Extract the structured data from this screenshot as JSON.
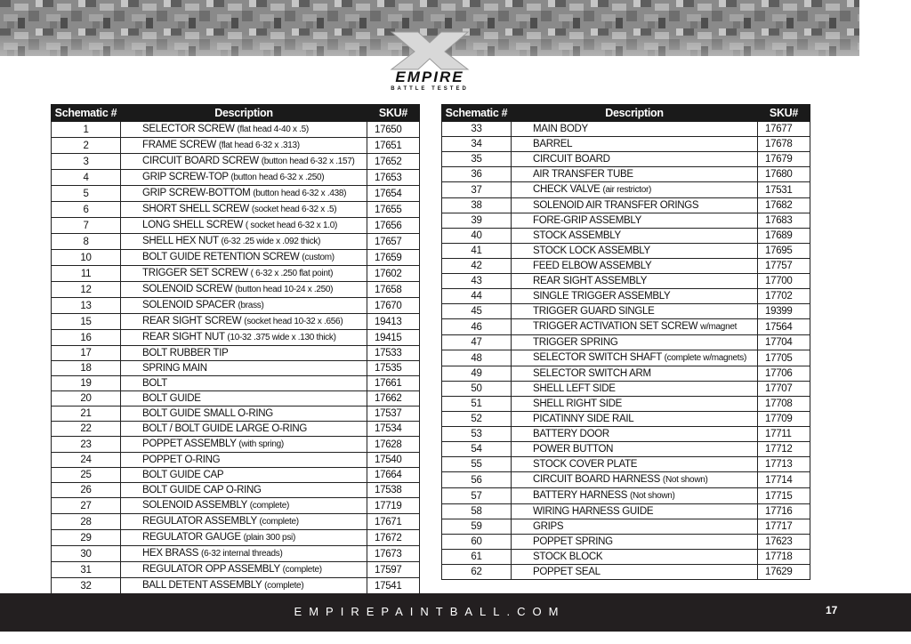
{
  "logo": {
    "brand": "EMPIRE",
    "tagline": "BATTLE TESTED"
  },
  "tables": [
    {
      "header": [
        "Schematic #",
        "Description",
        "SKU#"
      ],
      "rows": [
        {
          "no": "1",
          "desc": "SELECTOR SCREW",
          "note": "(flat head 4-40 x .5)",
          "sku": "17650"
        },
        {
          "no": "2",
          "desc": "FRAME SCREW",
          "note": "(flat head 6-32 x .313)",
          "sku": "17651"
        },
        {
          "no": "3",
          "desc": "CIRCUIT BOARD SCREW",
          "note": "(button head 6-32 x .157)",
          "sku": "17652"
        },
        {
          "no": "4",
          "desc": "GRIP SCREW-TOP",
          "note": "(button head 6-32 x .250)",
          "sku": "17653"
        },
        {
          "no": "5",
          "desc": "GRIP SCREW-BOTTOM",
          "note": "(button head 6-32 x .438)",
          "sku": "17654"
        },
        {
          "no": "6",
          "desc": "SHORT SHELL SCREW",
          "note": "(socket head 6-32 x .5)",
          "sku": "17655"
        },
        {
          "no": "7",
          "desc": "LONG SHELL SCREW",
          "note": "( socket head 6-32 x 1.0)",
          "sku": "17656"
        },
        {
          "no": "8",
          "desc": "SHELL HEX NUT",
          "note": "(6-32 .25 wide x .092 thick)",
          "sku": "17657"
        },
        {
          "no": "10",
          "desc": "BOLT GUIDE RETENTION SCREW",
          "note": "(custom)",
          "sku": "17659"
        },
        {
          "no": "11",
          "desc": "TRIGGER SET SCREW",
          "note": "( 6-32 x .250 flat point)",
          "sku": "17602"
        },
        {
          "no": "12",
          "desc": "SOLENOID SCREW",
          "note": "(button head 10-24 x .250)",
          "sku": "17658"
        },
        {
          "no": "13",
          "desc": "SOLENOID SPACER",
          "note": "(brass)",
          "sku": "17670"
        },
        {
          "no": "15",
          "desc": "REAR SIGHT SCREW",
          "note": "(socket head 10-32 x .656)",
          "sku": "19413"
        },
        {
          "no": "16",
          "desc": "REAR SIGHT NUT",
          "note": "(10-32 .375 wide x .130 thick)",
          "sku": "19415"
        },
        {
          "no": "17",
          "desc": "BOLT RUBBER TIP",
          "sku": "17533"
        },
        {
          "no": "18",
          "desc": "SPRING MAIN",
          "sku": "17535"
        },
        {
          "no": "19",
          "desc": "BOLT",
          "sku": "17661"
        },
        {
          "no": "20",
          "desc": "BOLT GUIDE",
          "sku": "17662"
        },
        {
          "no": "21",
          "desc": "BOLT GUIDE SMALL O-RING",
          "sku": "17537"
        },
        {
          "no": "22",
          "desc": "BOLT / BOLT GUIDE LARGE O-RING",
          "sku": "17534"
        },
        {
          "no": "23",
          "desc": "POPPET ASSEMBLY",
          "note": "(with spring)",
          "sku": "17628"
        },
        {
          "no": "24",
          "desc": "POPPET O-RING",
          "sku": "17540"
        },
        {
          "no": "25",
          "desc": "BOLT GUIDE CAP",
          "sku": "17664"
        },
        {
          "no": "26",
          "desc": "BOLT GUIDE CAP O-RING",
          "sku": "17538"
        },
        {
          "no": "27",
          "desc": "SOLENOID ASSEMBLY",
          "note": "(complete)",
          "sku": "17719"
        },
        {
          "no": "28",
          "desc": "REGULATOR ASSEMBLY",
          "note": "(complete)",
          "sku": "17671"
        },
        {
          "no": "29",
          "desc": "REGULATOR GAUGE",
          "note": "(plain 300 psi)",
          "sku": "17672"
        },
        {
          "no": "30",
          "desc": "HEX BRASS",
          "note": "(6-32 internal threads)",
          "sku": "17673"
        },
        {
          "no": "31",
          "desc": "REGULATOR OPP ASSEMBLY",
          "note": "(complete)",
          "sku": "17597"
        },
        {
          "no": "32",
          "desc": "BALL DETENT ASSEMBLY",
          "note": "(complete)",
          "sku": "17541"
        }
      ]
    },
    {
      "header": [
        "Schematic #",
        "Description",
        "SKU#"
      ],
      "rows": [
        {
          "no": "33",
          "desc": "MAIN BODY",
          "sku": "17677"
        },
        {
          "no": "34",
          "desc": "BARREL",
          "sku": "17678"
        },
        {
          "no": "35",
          "desc": "CIRCUIT BOARD",
          "sku": "17679"
        },
        {
          "no": "36",
          "desc": "AIR TRANSFER TUBE",
          "sku": "17680"
        },
        {
          "no": "37",
          "desc": "CHECK VALVE",
          "note": "(air restrictor)",
          "sku": "17531"
        },
        {
          "no": "38",
          "desc": "SOLENOID AIR TRANSFER ORINGS",
          "sku": "17682"
        },
        {
          "no": "39",
          "desc": "FORE-GRIP ASSEMBLY",
          "sku": "17683"
        },
        {
          "no": "40",
          "desc": "STOCK ASSEMBLY",
          "sku": "17689"
        },
        {
          "no": "41",
          "desc": "STOCK LOCK ASSEMBLY",
          "sku": "17695"
        },
        {
          "no": "42",
          "desc": "FEED ELBOW ASSEMBLY",
          "sku": "17757"
        },
        {
          "no": "43",
          "desc": "REAR SIGHT ASSEMBLY",
          "sku": "17700"
        },
        {
          "no": "44",
          "desc": "SINGLE TRIGGER ASSEMBLY",
          "sku": "17702"
        },
        {
          "no": "45",
          "desc": "TRIGGER GUARD SINGLE",
          "sku": "19399"
        },
        {
          "no": "46",
          "desc": "TRIGGER ACTIVATION SET SCREW",
          "note": "w/magnet",
          "sku": "17564"
        },
        {
          "no": "47",
          "desc": "TRIGGER SPRING",
          "sku": "17704"
        },
        {
          "no": "48",
          "desc": "SELECTOR SWITCH SHAFT",
          "note": "(complete w/magnets)",
          "sku": "17705"
        },
        {
          "no": "49",
          "desc": "SELECTOR SWITCH ARM",
          "sku": "17706"
        },
        {
          "no": "50",
          "desc": "SHELL LEFT SIDE",
          "sku": "17707"
        },
        {
          "no": "51",
          "desc": "SHELL RIGHT SIDE",
          "sku": "17708"
        },
        {
          "no": "52",
          "desc": "PICATINNY SIDE RAIL",
          "sku": "17709"
        },
        {
          "no": "53",
          "desc": "BATTERY DOOR",
          "sku": "17711"
        },
        {
          "no": "54",
          "desc": "POWER BUTTON",
          "sku": "17712"
        },
        {
          "no": "55",
          "desc": "STOCK COVER PLATE",
          "sku": "17713"
        },
        {
          "no": "56",
          "desc": "CIRCUIT BOARD HARNESS",
          "note": "(Not shown)",
          "sku": "17714"
        },
        {
          "no": "57",
          "desc": "BATTERY HARNESS",
          "note": "(Not shown)",
          "sku": "17715"
        },
        {
          "no": "58",
          "desc": "WIRING HARNESS GUIDE",
          "sku": "17716"
        },
        {
          "no": "59",
          "desc": "GRIPS",
          "sku": "17717"
        },
        {
          "no": "60",
          "desc": "POPPET SPRING",
          "sku": "17623"
        },
        {
          "no": "61",
          "desc": "STOCK BLOCK",
          "sku": "17718"
        },
        {
          "no": "62",
          "desc": "POPPET SEAL",
          "sku": "17629"
        }
      ]
    }
  ],
  "footer": {
    "site": "EMPIREPAINTBALL.COM",
    "page": "17"
  }
}
